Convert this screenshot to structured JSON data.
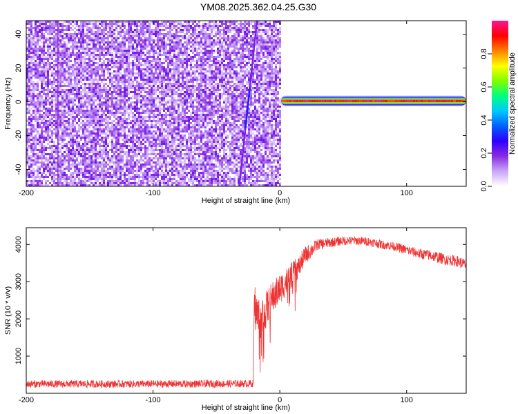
{
  "title": "YM08.2025.362.04.25.G30",
  "chart_data": [
    {
      "type": "heatmap",
      "title": "",
      "xlabel": "Height of straight line (km)",
      "ylabel": "Frequency (Hz)",
      "xlim": [
        -200,
        147
      ],
      "ylim": [
        -50,
        48
      ],
      "xticks": [
        -200,
        -100,
        0,
        100
      ],
      "yticks": [
        -40,
        -20,
        0,
        20,
        40
      ],
      "colorbar": {
        "label": "Normalized spectral amplitude",
        "range": [
          0.0,
          1.0
        ],
        "ticks": [
          "0.0",
          "0.2",
          "0.4",
          "0.6",
          "0.8"
        ],
        "ticks_values": [
          0.0,
          0.2,
          0.4,
          0.6,
          0.8
        ],
        "colormap": [
          "#ffffff",
          "#c9a6f7",
          "#8a2be2",
          "#2d00ff",
          "#0060ff",
          "#00c8ff",
          "#00ff80",
          "#80ff00",
          "#ffff00",
          "#ff8000",
          "#ff0000",
          "#ff1493"
        ]
      },
      "noise_region": {
        "x_range": [
          -200,
          0
        ],
        "y_range": [
          -50,
          48
        ],
        "level": 0.1
      },
      "signal_band": {
        "x_range": [
          0,
          147
        ],
        "frequency_hz": 0.5,
        "half_width_hz": 2.5,
        "peak_level": 1.0
      },
      "slanted_feature": {
        "x_start": -32,
        "y_start": -50,
        "x_end": -18,
        "y_end": 48
      }
    },
    {
      "type": "line",
      "title": "",
      "xlabel": "Height of straight line (km)",
      "ylabel": "SNR (10 * v/v)",
      "xlim": [
        -200,
        147
      ],
      "ylim": [
        0,
        4450
      ],
      "xticks": [
        -200,
        -100,
        0,
        100
      ],
      "yticks": [
        1000,
        2000,
        3000,
        4000
      ],
      "color": "#ee3333",
      "envelope": {
        "x": [
          -200,
          -100,
          -21,
          -20,
          -18,
          -15,
          -10,
          -5,
          0,
          5,
          10,
          15,
          20,
          30,
          40,
          50,
          60,
          70,
          80,
          90,
          100,
          110,
          120,
          130,
          140,
          147
        ],
        "y": [
          250,
          250,
          260,
          2400,
          2100,
          2000,
          2300,
          2600,
          2800,
          3000,
          3200,
          3400,
          3700,
          4000,
          4050,
          4100,
          4100,
          4080,
          4000,
          3950,
          3850,
          3750,
          3700,
          3600,
          3550,
          3450
        ],
        "noise": [
          100,
          100,
          100,
          600,
          600,
          550,
          500,
          450,
          400,
          380,
          350,
          300,
          250,
          150,
          130,
          120,
          120,
          120,
          120,
          120,
          130,
          140,
          150,
          150,
          150,
          150
        ]
      }
    }
  ]
}
